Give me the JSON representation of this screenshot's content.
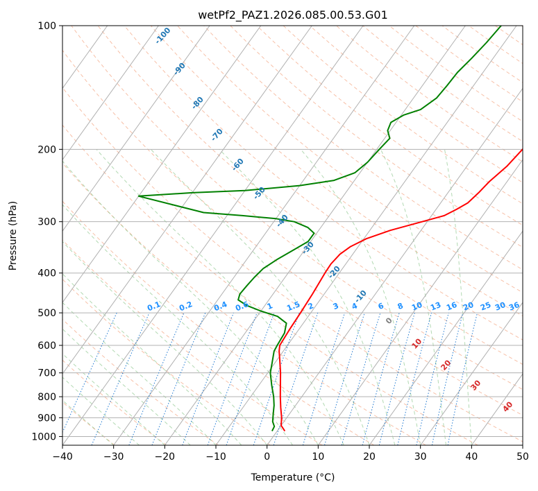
{
  "chart_data": {
    "type": "line",
    "subtype": "skew-t log-p",
    "title": "wetPf2_PAZ1.2026.085.00.53.G01",
    "xlabel": "Temperature (°C)",
    "ylabel": "Pressure (hPa)",
    "xlim": [
      -40,
      50
    ],
    "ylim": [
      1050,
      100
    ],
    "y_scale": "log",
    "grid": true,
    "x_ticks": [
      "−40",
      "−30",
      "−20",
      "−10",
      "0",
      "10",
      "20",
      "30",
      "40",
      "50"
    ],
    "y_ticks": [
      "100",
      "200",
      "300",
      "400",
      "500",
      "600",
      "700",
      "800",
      "900",
      "1000"
    ],
    "series": [
      {
        "color": "#ff0000",
        "points": [
          {
            "p": 970,
            "t": 1.5
          },
          {
            "p": 940,
            "t": 0.0
          },
          {
            "p": 900,
            "t": -1.0
          },
          {
            "p": 850,
            "t": -2.6
          },
          {
            "p": 800,
            "t": -4.2
          },
          {
            "p": 750,
            "t": -5.8
          },
          {
            "p": 700,
            "t": -7.5
          },
          {
            "p": 650,
            "t": -9.5
          },
          {
            "p": 620,
            "t": -10.8
          },
          {
            "p": 600,
            "t": -11.5
          },
          {
            "p": 550,
            "t": -11.8
          },
          {
            "p": 500,
            "t": -12.0
          },
          {
            "p": 450,
            "t": -12.3
          },
          {
            "p": 400,
            "t": -12.8
          },
          {
            "p": 380,
            "t": -12.9
          },
          {
            "p": 360,
            "t": -12.5
          },
          {
            "p": 345,
            "t": -11.5
          },
          {
            "p": 330,
            "t": -9.5
          },
          {
            "p": 315,
            "t": -6.0
          },
          {
            "p": 300,
            "t": -1.0
          },
          {
            "p": 290,
            "t": 2.5
          },
          {
            "p": 280,
            "t": 4.0
          },
          {
            "p": 270,
            "t": 5.3
          },
          {
            "p": 255,
            "t": 6.0
          },
          {
            "p": 240,
            "t": 6.5
          },
          {
            "p": 220,
            "t": 7.8
          },
          {
            "p": 200,
            "t": 8.5
          },
          {
            "p": 180,
            "t": 9.8
          },
          {
            "p": 160,
            "t": 11.5
          },
          {
            "p": 150,
            "t": 12.0
          },
          {
            "p": 140,
            "t": 11.8
          },
          {
            "p": 130,
            "t": 11.5
          },
          {
            "p": 120,
            "t": 11.0
          },
          {
            "p": 110,
            "t": 10.8
          },
          {
            "p": 100,
            "t": 10.5
          }
        ]
      },
      {
        "color": "#008000",
        "points": [
          {
            "p": 970,
            "t": -1.0
          },
          {
            "p": 945,
            "t": -1.2
          },
          {
            "p": 920,
            "t": -2.2
          },
          {
            "p": 880,
            "t": -3.2
          },
          {
            "p": 840,
            "t": -4.2
          },
          {
            "p": 800,
            "t": -5.5
          },
          {
            "p": 750,
            "t": -7.5
          },
          {
            "p": 700,
            "t": -9.5
          },
          {
            "p": 660,
            "t": -10.6
          },
          {
            "p": 620,
            "t": -11.8
          },
          {
            "p": 600,
            "t": -12.0
          },
          {
            "p": 560,
            "t": -12.3
          },
          {
            "p": 530,
            "t": -13.3
          },
          {
            "p": 510,
            "t": -16.0
          },
          {
            "p": 495,
            "t": -20.0
          },
          {
            "p": 480,
            "t": -23.5
          },
          {
            "p": 465,
            "t": -26.0
          },
          {
            "p": 450,
            "t": -26.5
          },
          {
            "p": 430,
            "t": -26.3
          },
          {
            "p": 410,
            "t": -26.0
          },
          {
            "p": 390,
            "t": -25.5
          },
          {
            "p": 370,
            "t": -24.0
          },
          {
            "p": 350,
            "t": -22.0
          },
          {
            "p": 335,
            "t": -20.5
          },
          {
            "p": 320,
            "t": -20.5
          },
          {
            "p": 310,
            "t": -22.5
          },
          {
            "p": 300,
            "t": -26.0
          },
          {
            "p": 295,
            "t": -30.0
          },
          {
            "p": 290,
            "t": -37.0
          },
          {
            "p": 285,
            "t": -45.0
          },
          {
            "p": 260,
            "t": -60.0
          },
          {
            "p": 255,
            "t": -50.0
          },
          {
            "p": 252,
            "t": -40.0
          },
          {
            "p": 245,
            "t": -30.0
          },
          {
            "p": 238,
            "t": -24.0
          },
          {
            "p": 228,
            "t": -21.0
          },
          {
            "p": 215,
            "t": -20.0
          },
          {
            "p": 200,
            "t": -19.5
          },
          {
            "p": 188,
            "t": -19.0
          },
          {
            "p": 180,
            "t": -20.5
          },
          {
            "p": 172,
            "t": -21.0
          },
          {
            "p": 165,
            "t": -19.5
          },
          {
            "p": 160,
            "t": -17.0
          },
          {
            "p": 150,
            "t": -15.5
          },
          {
            "p": 140,
            "t": -15.2
          },
          {
            "p": 130,
            "t": -15.0
          },
          {
            "p": 120,
            "t": -14.2
          },
          {
            "p": 110,
            "t": -13.5
          },
          {
            "p": 100,
            "t": -13.0
          }
        ]
      }
    ],
    "dry_adiabat_labels": [
      "-100",
      "-90",
      "-80",
      "-70",
      "-60",
      "-50",
      "-40",
      "-30",
      "-20",
      "-10"
    ],
    "dry_adiabat_label_color": "#1f77b4",
    "mixing_ratio_labels": [
      "0.1",
      "0.2",
      "0.4",
      "0.6",
      "1",
      "1.5",
      "2",
      "3",
      "4",
      "6",
      "8",
      "10",
      "13",
      "16",
      "20",
      "25",
      "30",
      "36"
    ],
    "mixing_ratio_label_color": "#1e90ff",
    "moist_adiabat_labels": [
      "0",
      "10",
      "20",
      "30",
      "40"
    ],
    "moist_adiabat_label_colors": [
      "#808080",
      "#d62728",
      "#d62728",
      "#d62728",
      "#d62728"
    ]
  }
}
